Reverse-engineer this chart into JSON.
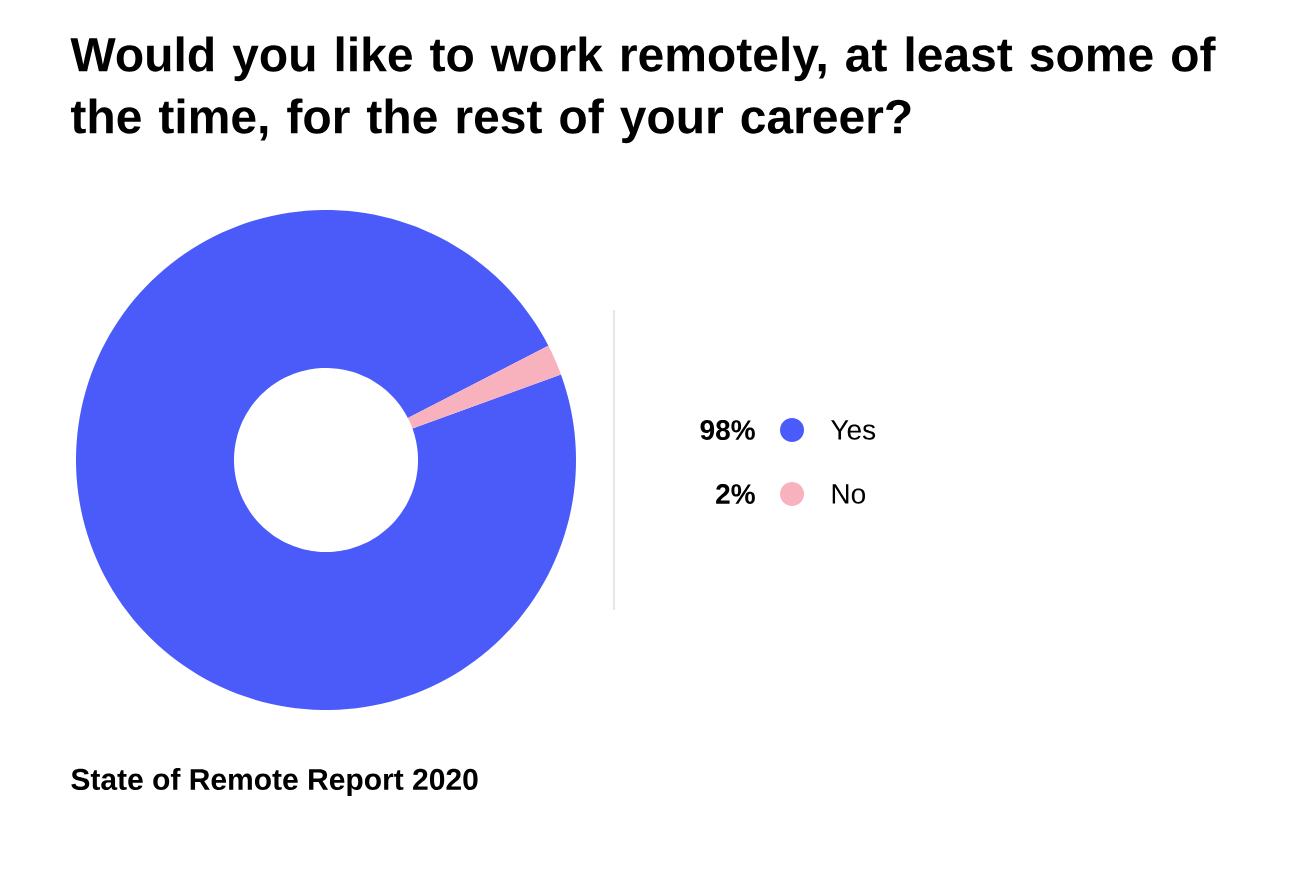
{
  "chart_data": {
    "type": "donut",
    "title": "Would you like to work remotely, at least some of the time, for the rest of your career?",
    "categories": [
      "Yes",
      "No"
    ],
    "values": [
      98,
      2
    ],
    "colors": [
      "#4b5bfa",
      "#f7b2be"
    ],
    "value_labels": [
      "98%",
      "2%"
    ],
    "legend": "right",
    "annotations": [
      "State of Remote Report 2020"
    ]
  }
}
